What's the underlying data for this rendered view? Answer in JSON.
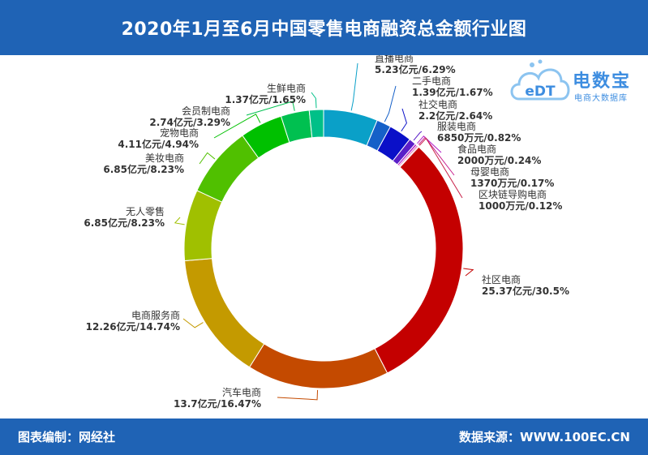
{
  "header": {
    "title": "2020年1月至6月中国零售电商融资总金额行业图"
  },
  "footer": {
    "left": "图表编制：网经社",
    "right": "数据来源：WWW.100EC.CN"
  },
  "logo": {
    "brand": "电数宝",
    "sub": "电商大数据库",
    "mark": "eDT"
  },
  "chart_data": {
    "type": "pie",
    "variant": "donut",
    "title": "2020年1月至6月中国零售电商融资总金额行业图",
    "unit": "亿元",
    "slices": [
      {
        "name": "直播电商",
        "value": 5.23,
        "label": "5.23亿元/6.29%",
        "percent": 6.29,
        "color": "#0aa0c8"
      },
      {
        "name": "二手电商",
        "value": 1.39,
        "label": "1.39亿元/1.67%",
        "percent": 1.67,
        "color": "#1560c8"
      },
      {
        "name": "社交电商",
        "value": 2.2,
        "label": "2.2亿元/2.64%",
        "percent": 2.64,
        "color": "#0a10c8"
      },
      {
        "name": "服装电商",
        "value": 0.685,
        "label": "6850万元/0.82%",
        "percent": 0.82,
        "color": "#5a1ec8"
      },
      {
        "name": "食品电商",
        "value": 0.2,
        "label": "2000万元/0.24%",
        "percent": 0.24,
        "color": "#b01ec8"
      },
      {
        "name": "母婴电商",
        "value": 0.137,
        "label": "1370万元/0.17%",
        "percent": 0.17,
        "color": "#c81e8c"
      },
      {
        "name": "区块链导购电商",
        "value": 0.1,
        "label": "1000万元/0.12%",
        "percent": 0.12,
        "color": "#c81e46"
      },
      {
        "name": "社区电商",
        "value": 25.37,
        "label": "25.37亿元/30.5%",
        "percent": 30.5,
        "color": "#c40000"
      },
      {
        "name": "汽车电商",
        "value": 13.7,
        "label": "13.7亿元/16.47%",
        "percent": 16.47,
        "color": "#c44a00"
      },
      {
        "name": "电商服务商",
        "value": 12.26,
        "label": "12.26亿元/14.74%",
        "percent": 14.74,
        "color": "#c49a00"
      },
      {
        "name": "无人零售",
        "value": 6.85,
        "label": "6.85亿元/8.23%",
        "percent": 8.23,
        "color": "#a0c000"
      },
      {
        "name": "美妆电商",
        "value": 6.85,
        "label": "6.85亿元/8.23%",
        "percent": 8.23,
        "color": "#50c000"
      },
      {
        "name": "宠物电商",
        "value": 4.11,
        "label": "4.11亿元/4.94%",
        "percent": 4.94,
        "color": "#00c000"
      },
      {
        "name": "会员制电商",
        "value": 2.74,
        "label": "2.74亿元/3.29%",
        "percent": 3.29,
        "color": "#00c050"
      },
      {
        "name": "生鲜电商",
        "value": 1.37,
        "label": "1.37亿元/1.65%",
        "percent": 1.65,
        "color": "#00c088"
      }
    ]
  }
}
